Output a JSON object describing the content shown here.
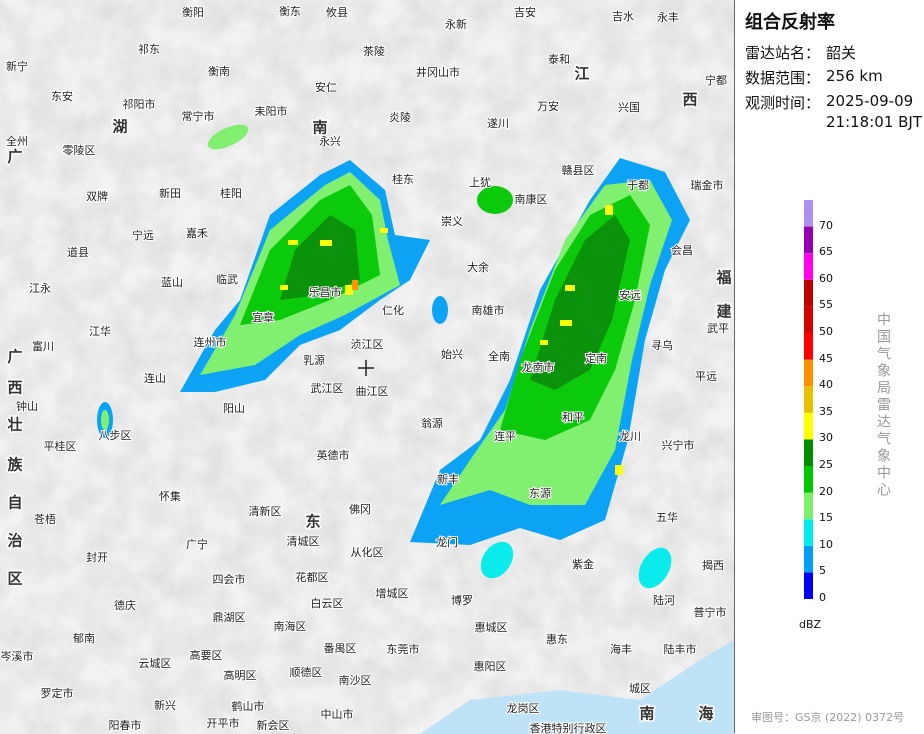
{
  "panel": {
    "title": "组合反射率",
    "station_label": "雷达站名：",
    "station": "韶关",
    "range_label": "数据范围：",
    "range": "256 km",
    "time_label": "观测时间：",
    "date": "2025-09-09",
    "time": "21:18:01 BJT"
  },
  "legend": {
    "unit": "dBZ",
    "levels": [
      0,
      5,
      10,
      15,
      20,
      25,
      30,
      35,
      40,
      45,
      50,
      55,
      60,
      65,
      70
    ],
    "colors": [
      "#0000f6",
      "#01a0f6",
      "#00ecec",
      "#7cf06a",
      "#00c800",
      "#008e00",
      "#ffff00",
      "#e7c000",
      "#ff9000",
      "#ff0000",
      "#d60000",
      "#c00000",
      "#ff00f0",
      "#9600b4",
      "#ad90f0"
    ]
  },
  "watermark": "中国气象局雷达气象中心",
  "approval": "审图号：GS京 (2022) 0372号",
  "map": {
    "labels": [
      "衡阳",
      "衡东",
      "攸县",
      "永新",
      "吉安",
      "吉水",
      "永丰",
      "新宁",
      "祁东",
      "衡南",
      "茶陵",
      "泰和",
      "井冈山市",
      "东安",
      "祁阳市",
      "耒阳市",
      "安仁",
      "炎陵",
      "遂川",
      "万安",
      "兴国",
      "宁都",
      "常宁市",
      "零陵区",
      "永兴",
      "全州",
      "赣县区",
      "双牌",
      "新田",
      "桂阳",
      "桂东",
      "上犹",
      "南康区",
      "于都",
      "瑞金市",
      "宁远",
      "嘉禾",
      "崇义",
      "道县",
      "蓝山",
      "临武",
      "大余",
      "会昌",
      "江永",
      "乐昌市",
      "仁化",
      "南雄市",
      "安远",
      "武平",
      "江华",
      "宜章",
      "连州市",
      "浈江区",
      "富川",
      "始兴",
      "全南",
      "寻乌",
      "定南",
      "连山",
      "乳源",
      "龙南市",
      "钟山",
      "武江区",
      "曲江区",
      "平远",
      "阳山",
      "翁源",
      "和平",
      "八步区",
      "平桂区",
      "英德市",
      "连平",
      "龙川",
      "兴宁市",
      "怀集",
      "新丰",
      "苍梧",
      "清新区",
      "佛冈",
      "东源",
      "五华",
      "广宁",
      "清城区",
      "龙门",
      "封开",
      "从化区",
      "四会市",
      "花都区",
      "紫金",
      "揭西",
      "德庆",
      "鼎湖区",
      "白云区",
      "增城区",
      "博罗",
      "陆河",
      "普宁市",
      "郁南",
      "南海区",
      "惠城区",
      "惠东",
      "高要区",
      "东莞市",
      "番禺区",
      "惠阳区",
      "海丰",
      "陆丰市",
      "岑溪市",
      "云城区",
      "顺德区",
      "高明区",
      "南沙区",
      "罗定市",
      "新兴",
      "鹤山市",
      "开平市",
      "中山市",
      "城区",
      "阳春市",
      "新会区",
      "龙岗区",
      "香港特别行政区"
    ],
    "regions": [
      "湖",
      "南",
      "江",
      "西",
      "广",
      "东",
      "福",
      "建",
      "广",
      "西",
      "壮",
      "族",
      "自",
      "治",
      "区",
      "南",
      "海"
    ]
  }
}
